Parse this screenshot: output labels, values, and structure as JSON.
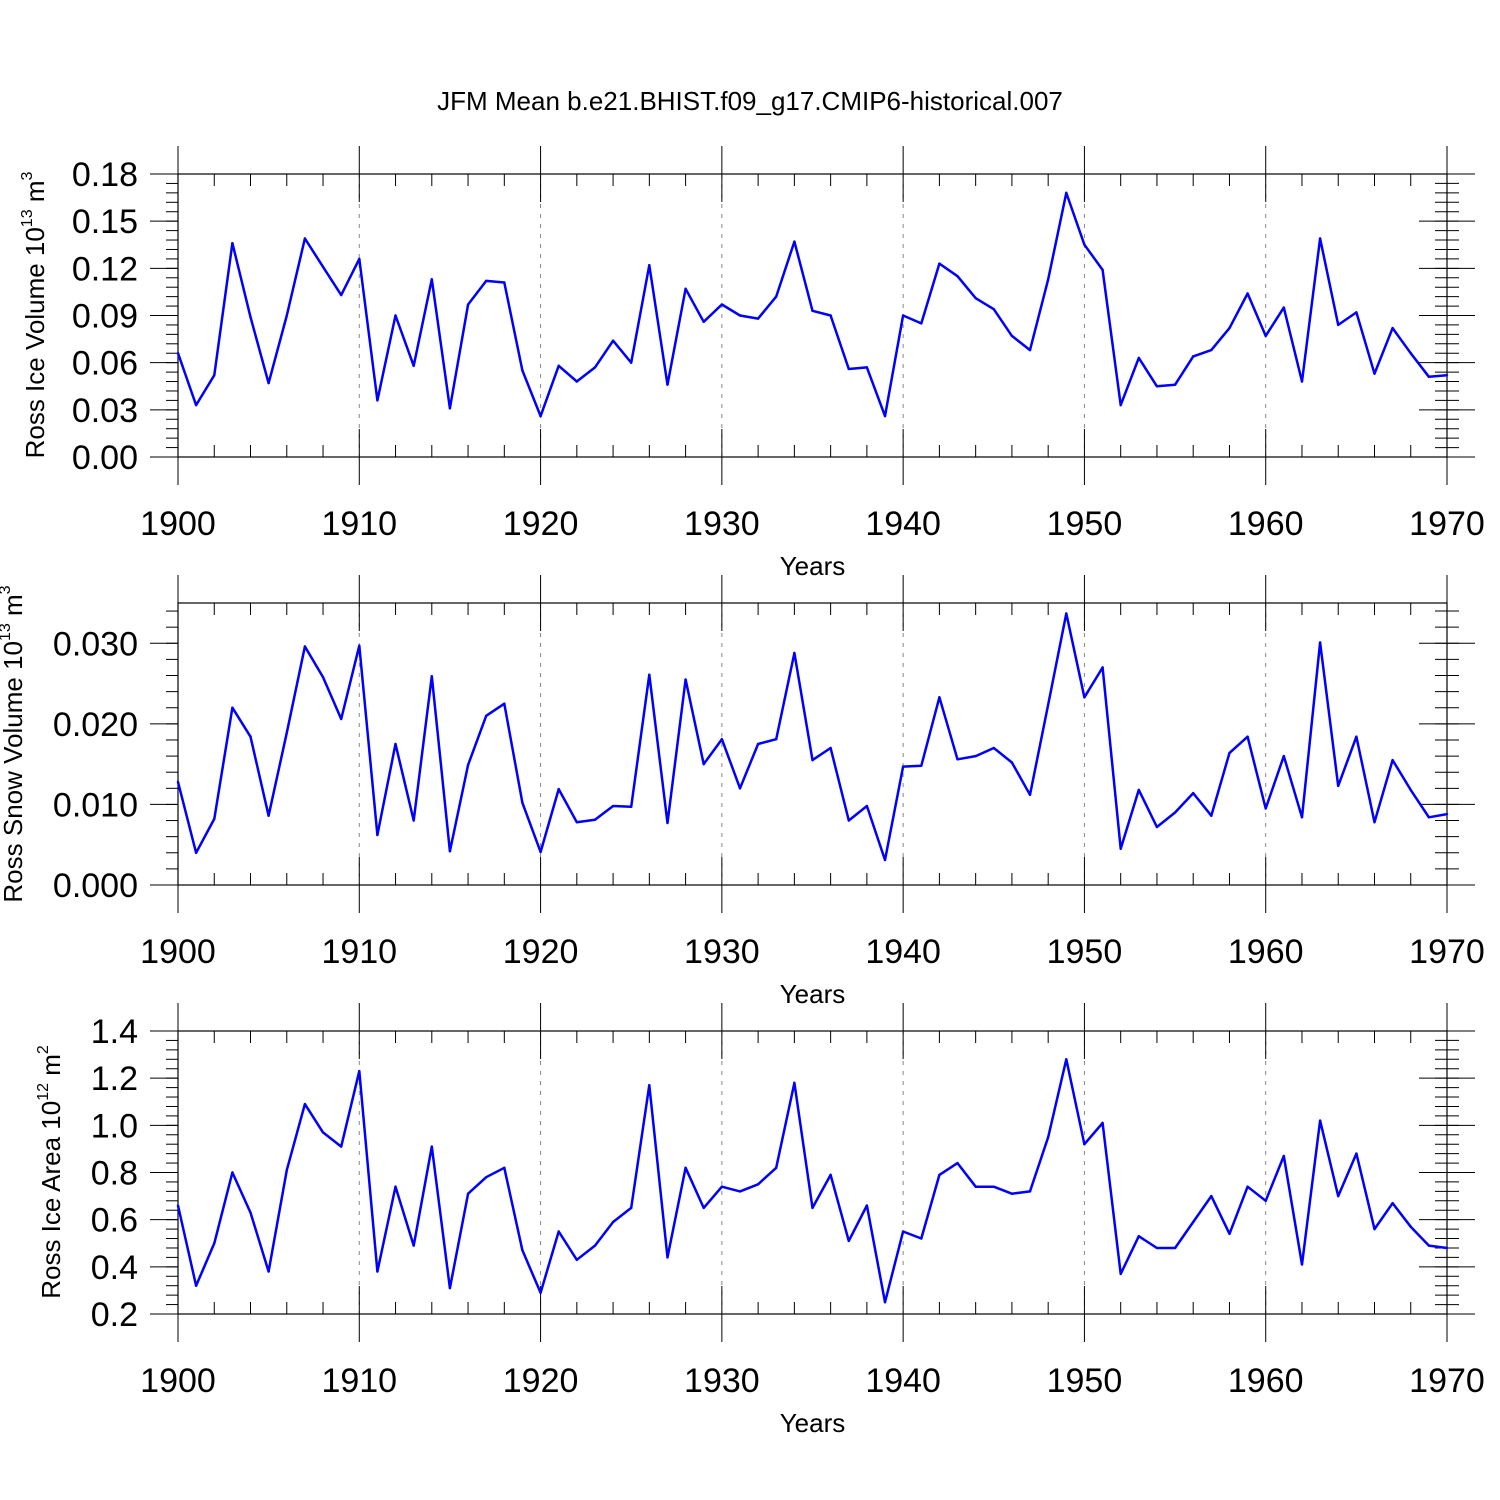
{
  "chart_data": [
    {
      "type": "line",
      "title": "JFM Mean b.e21.BHIST.f09_g17.CMIP6-historical.007",
      "xlabel": "Years",
      "ylabel": {
        "base": "Ross Ice Volume 10",
        "exp": "13",
        "unit": " m",
        "unit_exp": "3"
      },
      "xlim": [
        1900,
        1970
      ],
      "ylim": [
        0,
        0.18
      ],
      "x_ticks": [
        "1900",
        "1910",
        "1920",
        "1930",
        "1940",
        "1950",
        "1960",
        "1970"
      ],
      "y_ticks": [
        "0.00",
        "0.03",
        "0.06",
        "0.09",
        "0.12",
        "0.15",
        "0.18"
      ],
      "vertical_gridlines": "dashed at each decade",
      "line_color": "#0000ff",
      "x": [
        1900,
        1901,
        1902,
        1903,
        1904,
        1905,
        1906,
        1907,
        1908,
        1909,
        1910,
        1911,
        1912,
        1913,
        1914,
        1915,
        1916,
        1917,
        1918,
        1919,
        1920,
        1921,
        1922,
        1923,
        1924,
        1925,
        1926,
        1927,
        1928,
        1929,
        1930,
        1931,
        1932,
        1933,
        1934,
        1935,
        1936,
        1937,
        1938,
        1939,
        1940,
        1941,
        1942,
        1943,
        1944,
        1945,
        1946,
        1947,
        1948,
        1949,
        1950,
        1951,
        1952,
        1953,
        1954,
        1955,
        1956,
        1957,
        1958,
        1959,
        1960,
        1961,
        1962,
        1963,
        1964,
        1965,
        1966,
        1967,
        1968,
        1969,
        1970
      ],
      "values": [
        0.066,
        0.033,
        0.052,
        0.136,
        0.089,
        0.047,
        0.09,
        0.139,
        0.121,
        0.103,
        0.126,
        0.036,
        0.09,
        0.058,
        0.113,
        0.031,
        0.097,
        0.112,
        0.111,
        0.055,
        0.026,
        0.058,
        0.048,
        0.057,
        0.074,
        0.06,
        0.122,
        0.046,
        0.107,
        0.086,
        0.097,
        0.09,
        0.088,
        0.102,
        0.137,
        0.093,
        0.09,
        0.056,
        0.057,
        0.026,
        0.09,
        0.085,
        0.123,
        0.115,
        0.101,
        0.094,
        0.077,
        0.068,
        0.113,
        0.168,
        0.135,
        0.119,
        0.033,
        0.063,
        0.045,
        0.046,
        0.064,
        0.068,
        0.082,
        0.104,
        0.077,
        0.095,
        0.048,
        0.139,
        0.084,
        0.092,
        0.053,
        0.082,
        0.066,
        0.051,
        0.052
      ]
    },
    {
      "type": "line",
      "xlabel": "Years",
      "ylabel": {
        "base": "Ross Snow Volume 10",
        "exp": "13",
        "unit": " m",
        "unit_exp": "3"
      },
      "xlim": [
        1900,
        1970
      ],
      "ylim": [
        0,
        0.035
      ],
      "x_ticks": [
        "1900",
        "1910",
        "1920",
        "1930",
        "1940",
        "1950",
        "1960",
        "1970"
      ],
      "y_ticks": [
        "0.000",
        "0.010",
        "0.020",
        "0.030"
      ],
      "vertical_gridlines": "dashed at each decade",
      "line_color": "#0000ff",
      "x": [
        1900,
        1901,
        1902,
        1903,
        1904,
        1905,
        1906,
        1907,
        1908,
        1909,
        1910,
        1911,
        1912,
        1913,
        1914,
        1915,
        1916,
        1917,
        1918,
        1919,
        1920,
        1921,
        1922,
        1923,
        1924,
        1925,
        1926,
        1927,
        1928,
        1929,
        1930,
        1931,
        1932,
        1933,
        1934,
        1935,
        1936,
        1937,
        1938,
        1939,
        1940,
        1941,
        1942,
        1943,
        1944,
        1945,
        1946,
        1947,
        1948,
        1949,
        1950,
        1951,
        1952,
        1953,
        1954,
        1955,
        1956,
        1957,
        1958,
        1959,
        1960,
        1961,
        1962,
        1963,
        1964,
        1965,
        1966,
        1967,
        1968,
        1969,
        1970
      ],
      "values": [
        0.0128,
        0.004,
        0.0082,
        0.022,
        0.0184,
        0.0086,
        0.0189,
        0.0296,
        0.0258,
        0.0206,
        0.0297,
        0.0062,
        0.0175,
        0.008,
        0.0259,
        0.0042,
        0.0149,
        0.021,
        0.0225,
        0.0102,
        0.0041,
        0.0119,
        0.0078,
        0.0081,
        0.0098,
        0.0097,
        0.0261,
        0.0077,
        0.0255,
        0.015,
        0.0181,
        0.012,
        0.0175,
        0.0181,
        0.0288,
        0.0155,
        0.017,
        0.008,
        0.0098,
        0.0031,
        0.0147,
        0.0148,
        0.0233,
        0.0156,
        0.016,
        0.017,
        0.0152,
        0.0112,
        0.0224,
        0.0337,
        0.0233,
        0.027,
        0.0045,
        0.0118,
        0.0072,
        0.009,
        0.0114,
        0.0086,
        0.0164,
        0.0184,
        0.0095,
        0.016,
        0.0084,
        0.0301,
        0.0123,
        0.0184,
        0.0078,
        0.0155,
        0.0118,
        0.0084,
        0.0088
      ]
    },
    {
      "type": "line",
      "xlabel": "Years",
      "ylabel": {
        "base": "Ross Ice Area 10",
        "exp": "12",
        "unit": " m",
        "unit_exp": "2"
      },
      "xlim": [
        1900,
        1970
      ],
      "ylim": [
        0.2,
        1.4
      ],
      "x_ticks": [
        "1900",
        "1910",
        "1920",
        "1930",
        "1940",
        "1950",
        "1960",
        "1970"
      ],
      "y_ticks": [
        "0.2",
        "0.4",
        "0.6",
        "0.8",
        "1.0",
        "1.2",
        "1.4"
      ],
      "vertical_gridlines": "dashed at each decade",
      "line_color": "#0000ff",
      "x": [
        1900,
        1901,
        1902,
        1903,
        1904,
        1905,
        1906,
        1907,
        1908,
        1909,
        1910,
        1911,
        1912,
        1913,
        1914,
        1915,
        1916,
        1917,
        1918,
        1919,
        1920,
        1921,
        1922,
        1923,
        1924,
        1925,
        1926,
        1927,
        1928,
        1929,
        1930,
        1931,
        1932,
        1933,
        1934,
        1935,
        1936,
        1937,
        1938,
        1939,
        1940,
        1941,
        1942,
        1943,
        1944,
        1945,
        1946,
        1947,
        1948,
        1949,
        1950,
        1951,
        1952,
        1953,
        1954,
        1955,
        1956,
        1957,
        1958,
        1959,
        1960,
        1961,
        1962,
        1963,
        1964,
        1965,
        1966,
        1967,
        1968,
        1969,
        1970
      ],
      "values": [
        0.66,
        0.32,
        0.5,
        0.8,
        0.63,
        0.38,
        0.81,
        1.09,
        0.97,
        0.91,
        1.23,
        0.38,
        0.74,
        0.49,
        0.91,
        0.31,
        0.71,
        0.78,
        0.82,
        0.47,
        0.29,
        0.55,
        0.43,
        0.49,
        0.59,
        0.65,
        1.17,
        0.44,
        0.82,
        0.65,
        0.74,
        0.72,
        0.75,
        0.82,
        1.18,
        0.65,
        0.79,
        0.51,
        0.66,
        0.25,
        0.55,
        0.52,
        0.79,
        0.84,
        0.74,
        0.74,
        0.71,
        0.72,
        0.95,
        1.28,
        0.92,
        1.01,
        0.37,
        0.53,
        0.48,
        0.48,
        0.59,
        0.7,
        0.54,
        0.74,
        0.68,
        0.87,
        0.41,
        1.02,
        0.7,
        0.88,
        0.56,
        0.67,
        0.57,
        0.49,
        0.48
      ]
    }
  ]
}
